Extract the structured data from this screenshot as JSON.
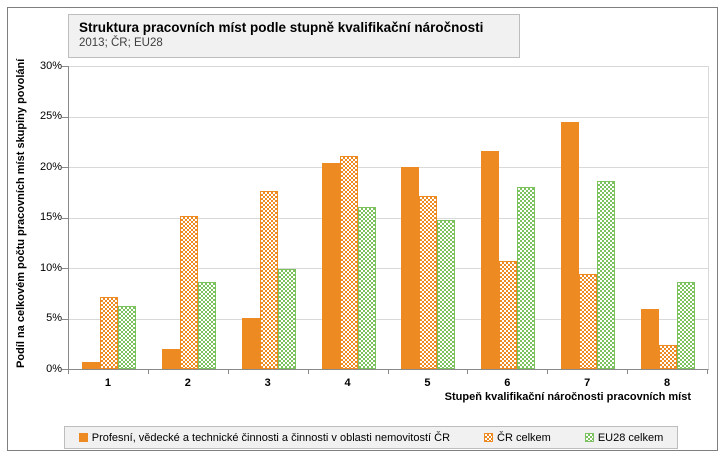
{
  "chart": {
    "title": "Struktura pracovních míst podle stupně kvalifikační náročnosti",
    "subtitle": "2013; ČR; EU28",
    "y_axis_title": "Podíl na celkovém počtu pracovních míst skupiny povolání",
    "x_axis_title": "Stupeň kvalifikační náročnosti pracovních míst"
  },
  "chart_data": {
    "type": "bar",
    "categories": [
      "1",
      "2",
      "3",
      "4",
      "5",
      "6",
      "7",
      "8"
    ],
    "series": [
      {
        "name": "Profesní, vědecké a technické činnosti a činnosti v oblasti nemovitostí ČR",
        "pattern": "solid",
        "color": "#EE8A22",
        "values": [
          0.7,
          2.0,
          5.0,
          20.4,
          20.0,
          21.6,
          24.5,
          5.9
        ]
      },
      {
        "name": "ČR celkem",
        "pattern": "checker",
        "color": "#EE8A22",
        "values": [
          7.1,
          15.1,
          17.6,
          21.1,
          17.1,
          10.7,
          9.4,
          2.4
        ]
      },
      {
        "name": "EU28 celkem",
        "pattern": "checker",
        "color": "#7CC35F",
        "values": [
          6.2,
          8.6,
          9.9,
          16.0,
          14.8,
          18.0,
          18.6,
          8.6
        ]
      }
    ],
    "ylim": [
      0,
      30
    ],
    "y_tick_step": 5,
    "y_tick_labels": [
      "0%",
      "5%",
      "10%",
      "15%",
      "20%",
      "25%",
      "30%"
    ],
    "grid": true,
    "legend_position": "bottom"
  },
  "colors": {
    "orange": "#EE8A22",
    "green": "#7CC35F",
    "gridline": "#D9D9D9",
    "axis": "#898989",
    "box_background": "#F1F1F1",
    "box_border": "#BDBDBD",
    "frame_border": "#7F7F7F",
    "subtitle_text": "#3F3F3F"
  }
}
